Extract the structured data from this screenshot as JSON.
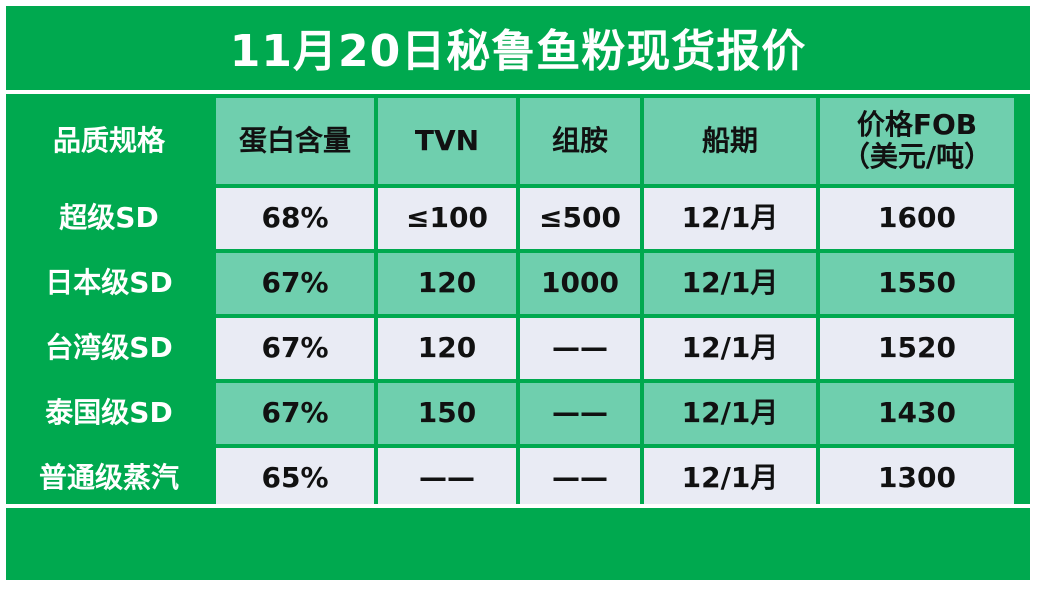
{
  "title": "11月20日秘鲁鱼粉现货报价",
  "table": {
    "headers": [
      "品质规格",
      "蛋白含量",
      "TVN",
      "组胺",
      "船期",
      "价格FOB\n（美元/吨）"
    ],
    "header_price_line1": "价格FOB",
    "header_price_line2": "（美元/吨）",
    "rows": [
      {
        "grade": "超级SD",
        "protein": "68%",
        "tvn": "≤100",
        "histamine": "≤500",
        "shipment": "12/1月",
        "price": "1600"
      },
      {
        "grade": "日本级SD",
        "protein": "67%",
        "tvn": "120",
        "histamine": "1000",
        "shipment": "12/1月",
        "price": "1550"
      },
      {
        "grade": "台湾级SD",
        "protein": "67%",
        "tvn": "120",
        "histamine": "——",
        "shipment": "12/1月",
        "price": "1520"
      },
      {
        "grade": "泰国级SD",
        "protein": "67%",
        "tvn": "150",
        "histamine": "——",
        "shipment": "12/1月",
        "price": "1430"
      },
      {
        "grade": "普通级蒸汽",
        "protein": "65%",
        "tvn": "——",
        "histamine": "——",
        "shipment": "12/1月",
        "price": "1300"
      }
    ]
  },
  "colors": {
    "brand_green": "#00a94f",
    "teal": "#6fcfae",
    "light": "#e9ebf4"
  }
}
